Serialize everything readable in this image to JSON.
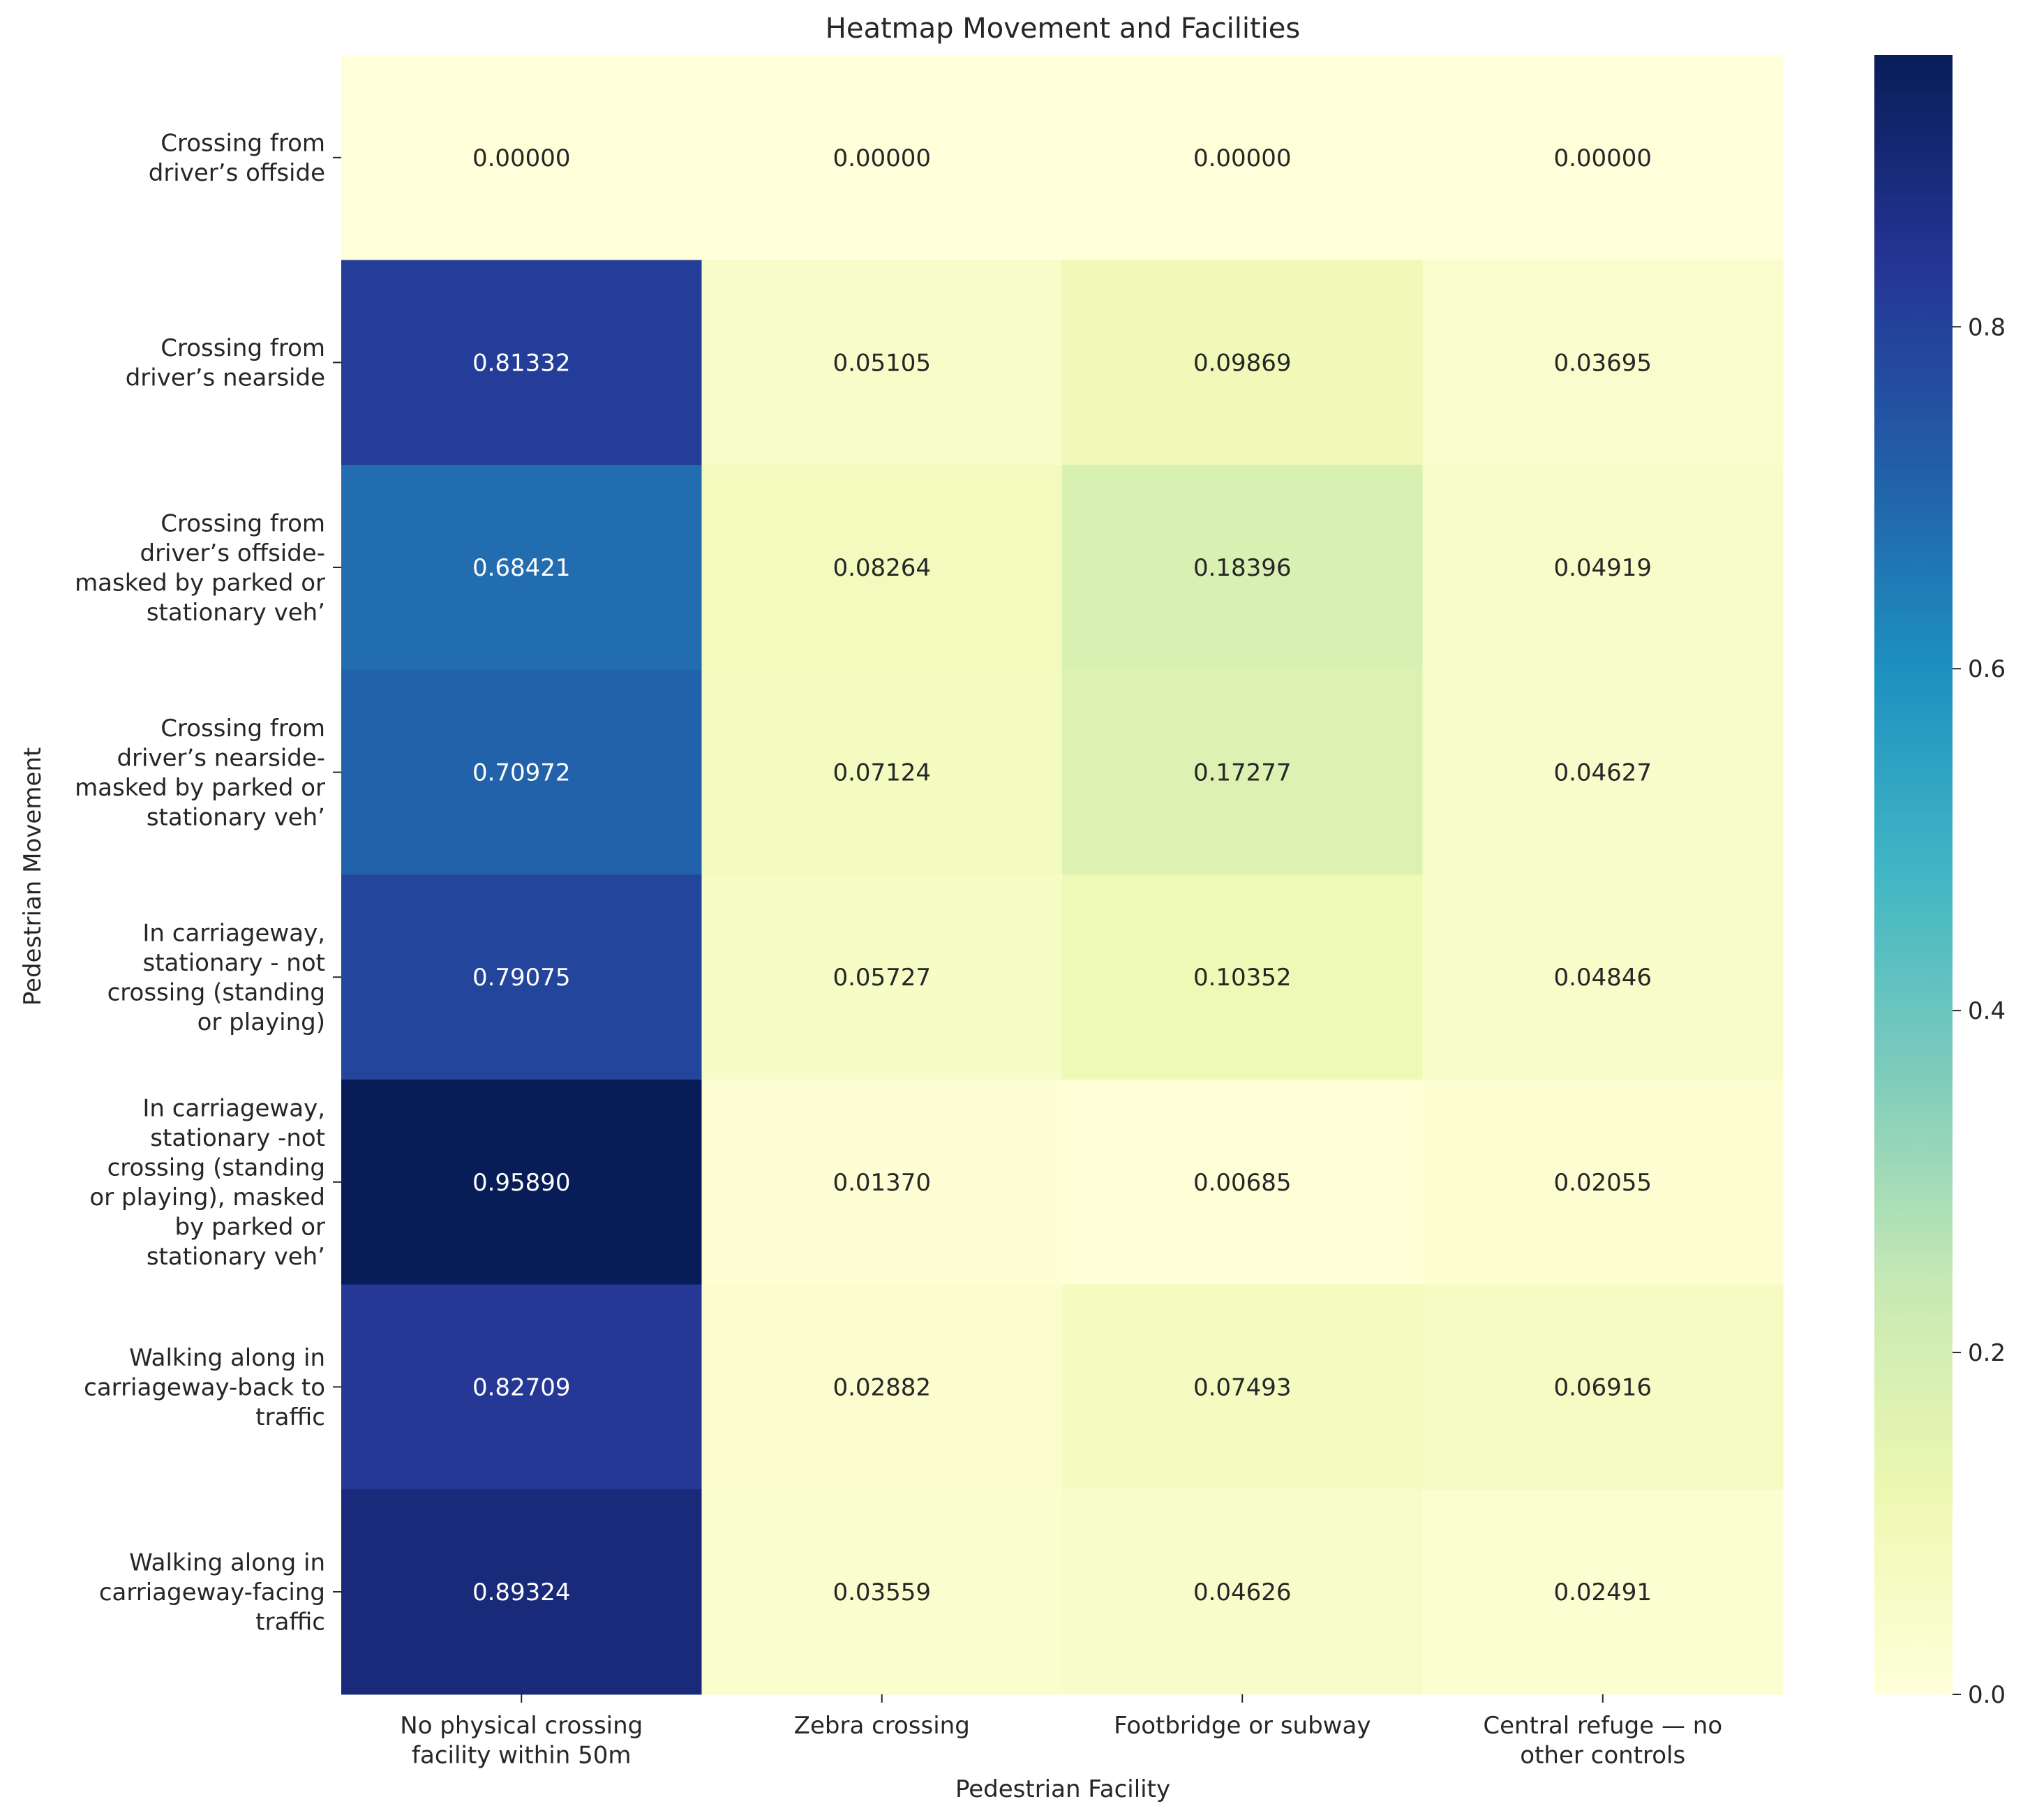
{
  "chart_data": {
    "type": "heatmap",
    "title": "Heatmap Movement and Facilities",
    "xlabel": "Pedestrian Facility",
    "ylabel": "Pedestrian Movement",
    "colormap": "YlGnBu",
    "columns": [
      [
        "No physical crossing",
        "facility within 50m"
      ],
      [
        "Zebra crossing"
      ],
      [
        "Footbridge or subway"
      ],
      [
        "Central refuge — no",
        "other controls"
      ]
    ],
    "rows": [
      [
        "Crossing from",
        "driver’s offside"
      ],
      [
        "Crossing from",
        "driver’s nearside"
      ],
      [
        "Crossing from",
        "driver’s offside-",
        "masked by parked or",
        "stationary veh’"
      ],
      [
        "Crossing from",
        "driver’s nearside-",
        "masked by parked or",
        "stationary veh’"
      ],
      [
        "In carriageway,",
        "stationary - not",
        "crossing (standing",
        "or playing)"
      ],
      [
        "In carriageway,",
        "stationary -not",
        "crossing (standing",
        "or playing), masked",
        "by parked or",
        "stationary veh’"
      ],
      [
        "Walking along in",
        "carriageway-back to",
        "traffic"
      ],
      [
        "Walking along in",
        "carriageway-facing",
        "traffic"
      ]
    ],
    "values": [
      [
        0.0,
        0.0,
        0.0,
        0.0
      ],
      [
        0.81332,
        0.05105,
        0.09869,
        0.03695
      ],
      [
        0.68421,
        0.08264,
        0.18396,
        0.04919
      ],
      [
        0.70972,
        0.07124,
        0.17277,
        0.04627
      ],
      [
        0.79075,
        0.05727,
        0.10352,
        0.04846
      ],
      [
        0.9589,
        0.0137,
        0.00685,
        0.02055
      ],
      [
        0.82709,
        0.02882,
        0.07493,
        0.06916
      ],
      [
        0.89324,
        0.03559,
        0.04626,
        0.02491
      ]
    ],
    "value_format_decimals": 5,
    "colorbar": {
      "vmin": 0.0,
      "vmax": 0.9589,
      "ticks": [
        0.0,
        0.2,
        0.4,
        0.6,
        0.8
      ],
      "tick_labels": [
        "0.0",
        "0.2",
        "0.4",
        "0.6",
        "0.8"
      ]
    }
  }
}
